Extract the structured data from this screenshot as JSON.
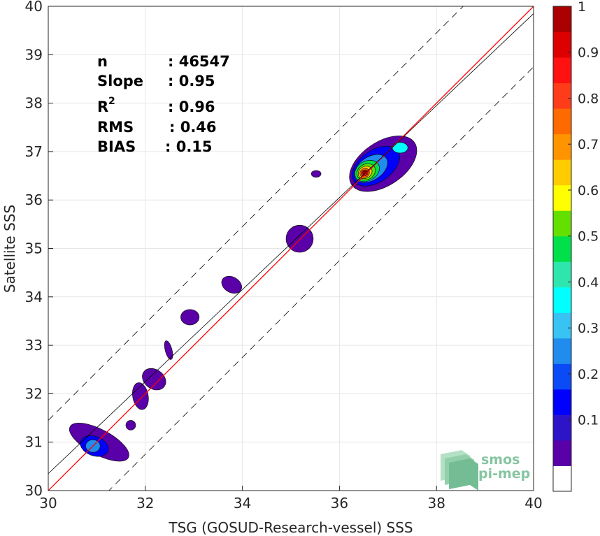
{
  "chart_data": {
    "type": "contour",
    "xlabel": "TSG (GOSUD-Research-vessel) SSS",
    "ylabel": "Satellite SSS",
    "xlim": [
      30,
      40
    ],
    "ylim": [
      30,
      40
    ],
    "xticks": [
      "30",
      "32",
      "34",
      "36",
      "38",
      "40"
    ],
    "yticks": [
      "30",
      "31",
      "32",
      "33",
      "34",
      "35",
      "36",
      "37",
      "38",
      "39",
      "40"
    ],
    "grid": true,
    "stats": [
      {
        "label": "n",
        "value": ": 46547"
      },
      {
        "label": "Slope",
        "value": ": 0.95"
      },
      {
        "label": "R",
        "sup": "2",
        "value": ": 0.96"
      },
      {
        "label": "RMS",
        "value": ": 0.46"
      },
      {
        "label": "BIAS",
        "value": ": 0.15"
      }
    ],
    "lines": [
      {
        "name": "one-to-one",
        "color": "#ff0000",
        "x": [
          30,
          40
        ],
        "y": [
          30,
          40
        ]
      },
      {
        "name": "regression",
        "color": "#000000",
        "x": [
          30,
          40
        ],
        "y": [
          30.35,
          39.85
        ]
      },
      {
        "name": "upper-bound",
        "color": "#000000",
        "dash": true,
        "x": [
          30,
          40
        ],
        "y": [
          31.45,
          41.45
        ]
      },
      {
        "name": "lower-bound",
        "color": "#000000",
        "dash": true,
        "x": [
          30,
          40
        ],
        "y": [
          28.75,
          38.75
        ]
      }
    ],
    "density_blobs": [
      {
        "cx": 36.9,
        "cy": 36.75,
        "rx": 0.78,
        "ry": 0.45,
        "rot": 34,
        "level": 0.05
      },
      {
        "cx": 36.75,
        "cy": 36.7,
        "rx": 0.55,
        "ry": 0.33,
        "rot": 34,
        "level": 0.15
      },
      {
        "cx": 36.65,
        "cy": 36.65,
        "rx": 0.38,
        "ry": 0.24,
        "rot": 34,
        "level": 0.25
      },
      {
        "cx": 37.25,
        "cy": 37.08,
        "rx": 0.16,
        "ry": 0.11,
        "rot": 0,
        "level": 0.35
      },
      {
        "cx": 36.57,
        "cy": 36.6,
        "rx": 0.27,
        "ry": 0.2,
        "rot": 30,
        "level": 0.45
      },
      {
        "cx": 36.55,
        "cy": 36.58,
        "rx": 0.2,
        "ry": 0.16,
        "rot": 30,
        "level": 0.55
      },
      {
        "cx": 36.53,
        "cy": 36.57,
        "rx": 0.15,
        "ry": 0.12,
        "rot": 30,
        "level": 0.65
      },
      {
        "cx": 36.52,
        "cy": 36.56,
        "rx": 0.1,
        "ry": 0.09,
        "rot": 30,
        "level": 0.75
      },
      {
        "cx": 36.52,
        "cy": 36.56,
        "rx": 0.07,
        "ry": 0.06,
        "rot": 30,
        "level": 0.85
      },
      {
        "cx": 36.52,
        "cy": 36.56,
        "rx": 0.04,
        "ry": 0.04,
        "rot": 0,
        "level": 0.95
      },
      {
        "cx": 35.52,
        "cy": 36.54,
        "rx": 0.1,
        "ry": 0.07,
        "rot": 0,
        "level": 0.05
      },
      {
        "cx": 35.18,
        "cy": 35.2,
        "rx": 0.28,
        "ry": 0.28,
        "rot": 0,
        "level": 0.05
      },
      {
        "cx": 33.78,
        "cy": 34.25,
        "rx": 0.22,
        "ry": 0.16,
        "rot": -30,
        "level": 0.05
      },
      {
        "cx": 32.92,
        "cy": 33.58,
        "rx": 0.19,
        "ry": 0.16,
        "rot": 0,
        "level": 0.05
      },
      {
        "cx": 32.48,
        "cy": 32.9,
        "rx": 0.07,
        "ry": 0.2,
        "rot": 15,
        "level": 0.05
      },
      {
        "cx": 32.18,
        "cy": 32.3,
        "rx": 0.26,
        "ry": 0.2,
        "rot": -35,
        "level": 0.05
      },
      {
        "cx": 31.9,
        "cy": 31.95,
        "rx": 0.16,
        "ry": 0.28,
        "rot": 10,
        "level": 0.05
      },
      {
        "cx": 31.7,
        "cy": 31.35,
        "rx": 0.1,
        "ry": 0.1,
        "rot": 0,
        "level": 0.05
      },
      {
        "cx": 31.05,
        "cy": 31.0,
        "rx": 0.68,
        "ry": 0.26,
        "rot": -28,
        "level": 0.05
      },
      {
        "cx": 30.95,
        "cy": 30.92,
        "rx": 0.3,
        "ry": 0.2,
        "rot": -20,
        "level": 0.15
      },
      {
        "cx": 30.92,
        "cy": 30.92,
        "rx": 0.15,
        "ry": 0.13,
        "rot": 0,
        "level": 0.25
      }
    ],
    "colorbar": {
      "ticks": [
        "0.1",
        "0.2",
        "0.3",
        "0.4",
        "0.5",
        "0.6",
        "0.7",
        "0.8",
        "0.9",
        "1"
      ],
      "colors": [
        "#ffffff",
        "#5a00a8",
        "#2e14c8",
        "#0000ff",
        "#0b4bf5",
        "#1f8cee",
        "#38c3f2",
        "#00ffff",
        "#2ee6ad",
        "#00e04a",
        "#63e000",
        "#ffff00",
        "#ffcc00",
        "#ff9300",
        "#ff6a00",
        "#ff3c1a",
        "#ff1111",
        "#dd0000",
        "#aa0000"
      ]
    }
  },
  "logo": {
    "line1": "smos",
    "line2": "pi-mep"
  }
}
